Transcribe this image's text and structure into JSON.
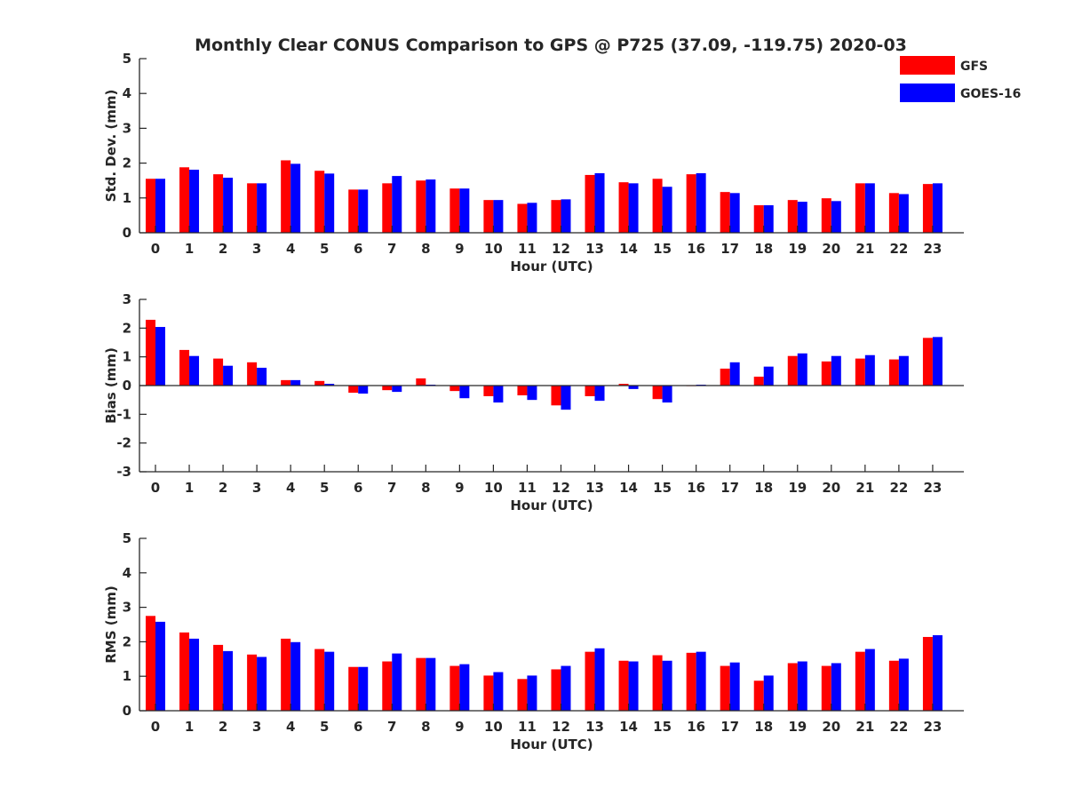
{
  "chart_data": {
    "type": "bar",
    "title": "Monthly Clear CONUS Comparison to GPS @ P725 (37.09, -119.75) 2020-03",
    "categories": [
      "0",
      "1",
      "2",
      "3",
      "4",
      "5",
      "6",
      "7",
      "8",
      "9",
      "10",
      "11",
      "12",
      "13",
      "14",
      "15",
      "16",
      "17",
      "18",
      "19",
      "20",
      "21",
      "22",
      "23"
    ],
    "legend": {
      "position": "top-right",
      "entries": [
        {
          "name": "GFS",
          "color": "#ff0000"
        },
        {
          "name": "GOES-16",
          "color": "#0000ff"
        }
      ]
    },
    "panels": [
      {
        "id": "stddev",
        "xlabel": "Hour (UTC)",
        "ylabel": "Std. Dev. (mm)",
        "ylim": [
          0,
          5
        ],
        "yticks": [
          "0",
          "1",
          "2",
          "3",
          "4",
          "5"
        ],
        "series": [
          {
            "name": "GFS",
            "color": "#ff0000",
            "values": [
              1.55,
              1.88,
              1.68,
              1.42,
              2.08,
              1.78,
              1.24,
              1.42,
              1.5,
              1.27,
              0.94,
              0.83,
              0.94,
              1.66,
              1.45,
              1.55,
              1.68,
              1.17,
              0.79,
              0.94,
              0.99,
              1.42,
              1.14,
              1.4
            ]
          },
          {
            "name": "GOES-16",
            "color": "#0000ff",
            "values": [
              1.55,
              1.81,
              1.58,
              1.42,
              1.98,
              1.7,
              1.24,
              1.63,
              1.53,
              1.27,
              0.94,
              0.86,
              0.96,
              1.71,
              1.42,
              1.32,
              1.71,
              1.14,
              0.79,
              0.89,
              0.91,
              1.42,
              1.11,
              1.42
            ]
          }
        ]
      },
      {
        "id": "bias",
        "xlabel": "Hour (UTC)",
        "ylabel": "Bias (mm)",
        "ylim": [
          -3,
          3
        ],
        "yticks": [
          "-3",
          "-2",
          "-1",
          "0",
          "1",
          "2",
          "3"
        ],
        "series": [
          {
            "name": "GFS",
            "color": "#ff0000",
            "values": [
              2.29,
              1.24,
              0.94,
              0.81,
              0.19,
              0.16,
              -0.25,
              -0.16,
              0.25,
              -0.19,
              -0.37,
              -0.34,
              -0.69,
              -0.37,
              0.06,
              -0.47,
              0.0,
              0.59,
              0.31,
              1.03,
              0.84,
              0.94,
              0.91,
              1.66
            ]
          },
          {
            "name": "GOES-16",
            "color": "#0000ff",
            "values": [
              2.04,
              1.03,
              0.69,
              0.62,
              0.19,
              0.06,
              -0.28,
              -0.22,
              0.03,
              -0.44,
              -0.59,
              -0.5,
              -0.84,
              -0.53,
              -0.12,
              -0.59,
              0.03,
              0.81,
              0.66,
              1.12,
              1.03,
              1.06,
              1.03,
              1.69
            ]
          }
        ]
      },
      {
        "id": "rms",
        "xlabel": "Hour (UTC)",
        "ylabel": "RMS (mm)",
        "ylim": [
          0,
          5
        ],
        "yticks": [
          "0",
          "1",
          "2",
          "3",
          "4",
          "5"
        ],
        "series": [
          {
            "name": "GFS",
            "color": "#ff0000",
            "values": [
              2.75,
              2.27,
              1.91,
              1.63,
              2.09,
              1.79,
              1.27,
              1.43,
              1.53,
              1.3,
              1.02,
              0.92,
              1.2,
              1.71,
              1.45,
              1.61,
              1.68,
              1.3,
              0.87,
              1.38,
              1.3,
              1.71,
              1.45,
              2.14
            ]
          },
          {
            "name": "GOES-16",
            "color": "#0000ff",
            "values": [
              2.58,
              2.09,
              1.73,
              1.56,
              1.99,
              1.71,
              1.27,
              1.66,
              1.53,
              1.35,
              1.12,
              1.02,
              1.3,
              1.81,
              1.43,
              1.45,
              1.71,
              1.4,
              1.02,
              1.43,
              1.38,
              1.79,
              1.51,
              2.19
            ]
          }
        ]
      }
    ]
  }
}
